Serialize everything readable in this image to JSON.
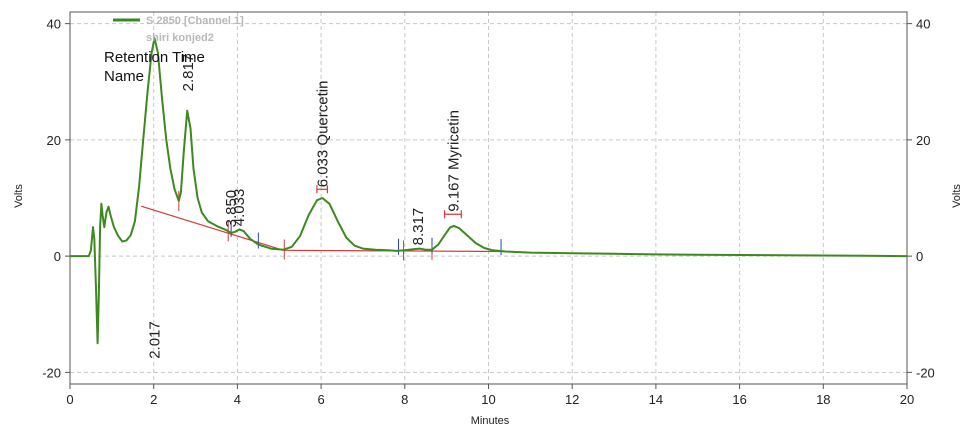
{
  "chart_data": {
    "type": "line",
    "xlabel": "Minutes",
    "ylabel_left": "Volts",
    "ylabel_right": "Volts",
    "xlim": [
      0,
      20
    ],
    "ylim": [
      -22,
      42
    ],
    "x_ticks": [
      0,
      2,
      4,
      6,
      8,
      10,
      12,
      14,
      16,
      18,
      20
    ],
    "y_ticks": [
      -20,
      0,
      20,
      40
    ],
    "grid": true,
    "legend_position": "top-left",
    "legend": {
      "series_name": "S 2850 [Channel 1]",
      "sample_name": "shiri konjed2"
    },
    "header_labels": {
      "retention_time": "Retention Time",
      "name": "Name"
    },
    "series": [
      {
        "name": "S 2850 [Channel 1]",
        "color": "#3c8a1f",
        "points": [
          [
            0,
            0
          ],
          [
            0.45,
            0
          ],
          [
            0.5,
            1
          ],
          [
            0.55,
            5
          ],
          [
            0.58,
            3
          ],
          [
            0.62,
            -5
          ],
          [
            0.66,
            -15
          ],
          [
            0.69,
            -6
          ],
          [
            0.72,
            5
          ],
          [
            0.75,
            9
          ],
          [
            0.78,
            7
          ],
          [
            0.82,
            5
          ],
          [
            0.87,
            7.5
          ],
          [
            0.92,
            8.5
          ],
          [
            0.97,
            7
          ],
          [
            1.05,
            5
          ],
          [
            1.15,
            3.5
          ],
          [
            1.25,
            2.5
          ],
          [
            1.35,
            2.7
          ],
          [
            1.45,
            3.6
          ],
          [
            1.55,
            6
          ],
          [
            1.65,
            12
          ],
          [
            1.75,
            20
          ],
          [
            1.85,
            28
          ],
          [
            1.95,
            35
          ],
          [
            2.02,
            37.5
          ],
          [
            2.1,
            35
          ],
          [
            2.2,
            27
          ],
          [
            2.3,
            20
          ],
          [
            2.4,
            15
          ],
          [
            2.5,
            11.5
          ],
          [
            2.6,
            9.5
          ],
          [
            2.65,
            11
          ],
          [
            2.72,
            18
          ],
          [
            2.8,
            25
          ],
          [
            2.88,
            22
          ],
          [
            2.95,
            15
          ],
          [
            3.05,
            10
          ],
          [
            3.15,
            7.5
          ],
          [
            3.3,
            6
          ],
          [
            3.5,
            5.2
          ],
          [
            3.7,
            4.6
          ],
          [
            3.85,
            4
          ],
          [
            3.95,
            4.2
          ],
          [
            4.05,
            4.6
          ],
          [
            4.15,
            4.3
          ],
          [
            4.3,
            3
          ],
          [
            4.5,
            2
          ],
          [
            4.8,
            1.3
          ],
          [
            5.1,
            1.1
          ],
          [
            5.3,
            1.6
          ],
          [
            5.5,
            3.5
          ],
          [
            5.7,
            7
          ],
          [
            5.9,
            9.6
          ],
          [
            6.03,
            10
          ],
          [
            6.2,
            9
          ],
          [
            6.4,
            6
          ],
          [
            6.6,
            3.2
          ],
          [
            6.8,
            1.8
          ],
          [
            7.0,
            1.3
          ],
          [
            7.3,
            1.1
          ],
          [
            7.6,
            1
          ],
          [
            7.8,
            0.9
          ],
          [
            8.0,
            1.0
          ],
          [
            8.2,
            1.2
          ],
          [
            8.35,
            1.3
          ],
          [
            8.5,
            1.1
          ],
          [
            8.65,
            1.1
          ],
          [
            8.8,
            2
          ],
          [
            8.95,
            3.6
          ],
          [
            9.08,
            4.9
          ],
          [
            9.17,
            5.2
          ],
          [
            9.3,
            4.8
          ],
          [
            9.5,
            3.5
          ],
          [
            9.7,
            2.2
          ],
          [
            9.9,
            1.4
          ],
          [
            10.1,
            1
          ],
          [
            10.4,
            0.8
          ],
          [
            11,
            0.6
          ],
          [
            12,
            0.5
          ],
          [
            13,
            0.4
          ],
          [
            14,
            0.3
          ],
          [
            15,
            0.25
          ],
          [
            16,
            0.2
          ],
          [
            17,
            0.15
          ],
          [
            18,
            0.1
          ],
          [
            19,
            0.05
          ],
          [
            20,
            0
          ]
        ]
      }
    ],
    "peaks": [
      {
        "rt": "2.017",
        "name": "",
        "x": 2.017,
        "label_y": -18
      },
      {
        "rt": "2.817",
        "name": "",
        "x": 2.817,
        "label_y": 28
      },
      {
        "rt": "3.850",
        "name": "",
        "x": 3.85,
        "label_y": 4.6
      },
      {
        "rt": "4.033",
        "name": "",
        "x": 4.033,
        "label_y": 4.8
      },
      {
        "rt": "6.033",
        "name": "Quercetin",
        "x": 6.033,
        "label_y": 11.5
      },
      {
        "rt": "8.317",
        "name": "",
        "x": 8.317,
        "label_y": 1.5
      },
      {
        "rt": "9.167",
        "name": "Myricetin",
        "x": 9.167,
        "label_y": 7.3
      }
    ],
    "baselines": [
      {
        "x1": 1.7,
        "y1": 8.6,
        "x2": 5.1,
        "y2": 1.0
      },
      {
        "x1": 5.1,
        "y1": 1.0,
        "x2": 10.3,
        "y2": 0.8
      }
    ],
    "boundary_markers_red": [
      2.6,
      3.78,
      5.12,
      7.97,
      8.65
    ],
    "boundary_markers_blue": [
      3.85,
      4.5,
      7.85,
      8.65,
      10.3
    ],
    "rt_error_bars": [
      {
        "x1": 5.9,
        "x2": 6.15,
        "y": 11.5
      },
      {
        "x1": 8.95,
        "x2": 9.35,
        "y": 7.2
      }
    ]
  }
}
